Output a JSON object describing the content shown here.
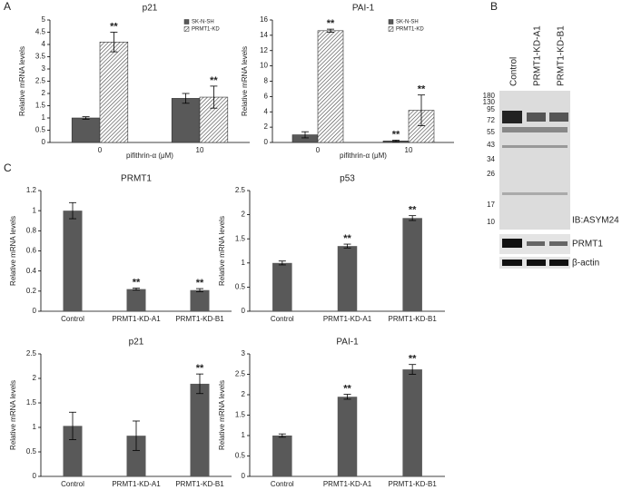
{
  "panels": [
    "A",
    "B",
    "C"
  ],
  "blot": {
    "lanes": [
      "Control",
      "PRMT1-KD-A1",
      "PRMT1-KD-B1"
    ],
    "markers": [
      "180",
      "130",
      "95",
      "72",
      "55",
      "43",
      "34",
      "26",
      "17",
      "10"
    ],
    "labels": [
      "IB:ASYM24",
      "PRMT1",
      "β-actin"
    ]
  },
  "chart_data": [
    {
      "type": "grouped_bar",
      "title": "p21",
      "y_label": "Relative mRNA levels",
      "x_label": "pifithrin-α (μM)",
      "categories": [
        "0",
        "10"
      ],
      "ylim": [
        0,
        5
      ],
      "yticks": [
        0,
        0.5,
        1,
        1.5,
        2,
        2.5,
        3,
        3.5,
        4,
        4.5,
        5
      ],
      "legend": "top-right",
      "series": [
        {
          "name": "SK-N-SH",
          "color": "#595959",
          "hatch": false,
          "values": [
            1.0,
            1.8
          ],
          "errors": [
            0.05,
            0.2
          ],
          "significance": [
            null,
            null
          ]
        },
        {
          "name": "PRMT1-KD",
          "color": "#ffffff",
          "hatch": true,
          "values": [
            4.1,
            1.85
          ],
          "errors": [
            0.4,
            0.45
          ],
          "significance": [
            "**",
            "**"
          ]
        }
      ]
    },
    {
      "type": "grouped_bar",
      "title": "PAI-1",
      "y_label": "Relative mRNA levels",
      "x_label": "pifithrin-α (μM)",
      "categories": [
        "0",
        "10"
      ],
      "ylim": [
        0,
        16
      ],
      "yticks": [
        0,
        2,
        4,
        6,
        8,
        10,
        12,
        14,
        16
      ],
      "legend": "top-right",
      "series": [
        {
          "name": "SK-N-SH",
          "color": "#595959",
          "hatch": false,
          "values": [
            1.0,
            0.2
          ],
          "errors": [
            0.4,
            0.1
          ],
          "significance": [
            null,
            "**"
          ]
        },
        {
          "name": "PRMT1-KD",
          "color": "#ffffff",
          "hatch": true,
          "values": [
            14.6,
            4.2
          ],
          "errors": [
            0.2,
            2.0
          ],
          "significance": [
            "**",
            "**"
          ]
        }
      ]
    },
    {
      "type": "bar",
      "title": "PRMT1",
      "y_label": "Relative mRNA levels",
      "categories": [
        "Control",
        "PRMT1-KD-A1",
        "PRMT1-KD-B1"
      ],
      "color": "#595959",
      "values": [
        1.0,
        0.22,
        0.21
      ],
      "errors": [
        0.08,
        0.01,
        0.015
      ],
      "significance": [
        null,
        "**",
        "**"
      ],
      "ylim": [
        0,
        1.2
      ],
      "yticks": [
        0,
        0.2,
        0.4,
        0.6,
        0.8,
        1,
        1.2
      ]
    },
    {
      "type": "bar",
      "title": "p53",
      "y_label": "Relative mRNA levels",
      "categories": [
        "Control",
        "PRMT1-KD-A1",
        "PRMT1-KD-B1"
      ],
      "color": "#595959",
      "values": [
        1.0,
        1.35,
        1.93
      ],
      "errors": [
        0.04,
        0.04,
        0.05
      ],
      "significance": [
        null,
        "**",
        "**"
      ],
      "ylim": [
        0,
        2.5
      ],
      "yticks": [
        0,
        0.5,
        1,
        1.5,
        2,
        2.5
      ]
    },
    {
      "type": "bar",
      "title": "p21",
      "y_label": "Relative mRNA levels",
      "categories": [
        "Control",
        "PRMT1-KD-A1",
        "PRMT1-KD-B1"
      ],
      "color": "#595959",
      "values": [
        1.03,
        0.83,
        1.89
      ],
      "errors": [
        0.28,
        0.3,
        0.2
      ],
      "significance": [
        null,
        null,
        "**"
      ],
      "ylim": [
        0,
        2.5
      ],
      "yticks": [
        0,
        0.5,
        1,
        1.5,
        2,
        2.5
      ]
    },
    {
      "type": "bar",
      "title": "PAI-1",
      "y_label": "Relative mRNA levels",
      "categories": [
        "Control",
        "PRMT1-KD-A1",
        "PRMT1-KD-B1"
      ],
      "color": "#595959",
      "values": [
        1.0,
        1.95,
        2.62
      ],
      "errors": [
        0.04,
        0.06,
        0.12
      ],
      "significance": [
        null,
        "**",
        "**"
      ],
      "ylim": [
        0,
        3
      ],
      "yticks": [
        0,
        0.5,
        1,
        1.5,
        2,
        2.5,
        3
      ]
    }
  ]
}
